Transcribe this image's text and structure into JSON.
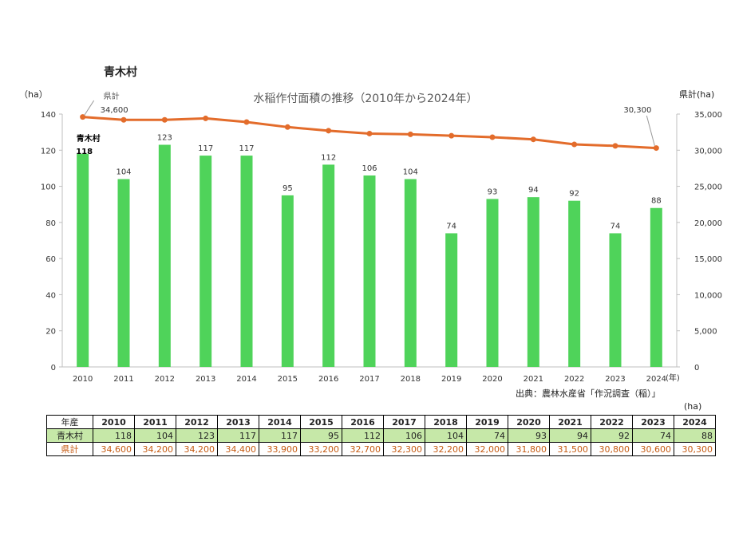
{
  "header": {
    "village": "青木村",
    "left_axis_unit": "（ha）",
    "right_axis_unit": "県計(ha)",
    "source": "出典：農林水産省「作況調査（稲）」",
    "table_unit": "(ha)"
  },
  "chart_data": {
    "type": "bar+line",
    "title": "水稲作付面積の推移（2010年から2024年）",
    "categories": [
      "2010",
      "2011",
      "2012",
      "2013",
      "2014",
      "2015",
      "2016",
      "2017",
      "2018",
      "2019",
      "2020",
      "2021",
      "2022",
      "2023",
      "2024"
    ],
    "x_unit_label": "(年)",
    "bar_series": {
      "name": "青木村",
      "values": [
        118,
        104,
        123,
        117,
        117,
        95,
        112,
        106,
        104,
        74,
        93,
        94,
        92,
        74,
        88
      ],
      "color": "#4fd35a",
      "ylim": [
        0,
        140
      ],
      "yticks": [
        0,
        20,
        40,
        60,
        80,
        100,
        120,
        140
      ]
    },
    "line_series": {
      "name": "県計",
      "values": [
        34600,
        34200,
        34200,
        34400,
        33900,
        33200,
        32700,
        32300,
        32200,
        32000,
        31800,
        31500,
        30800,
        30600,
        30300
      ],
      "color": "#e36c2b",
      "ylim": [
        0,
        35000
      ],
      "yticks": [
        0,
        5000,
        10000,
        15000,
        20000,
        25000,
        30000,
        35000
      ],
      "ytick_labels": [
        "0",
        "5,000",
        "10,000",
        "15,000",
        "20,000",
        "25,000",
        "30,000",
        "35,000"
      ],
      "label_first": "34,600",
      "label_last": "30,300",
      "series_label": "県計"
    },
    "bar_series_label": "青木村"
  },
  "table": {
    "header_label": "年産",
    "years": [
      "2010",
      "2011",
      "2012",
      "2013",
      "2014",
      "2015",
      "2016",
      "2017",
      "2018",
      "2019",
      "2020",
      "2021",
      "2022",
      "2023",
      "2024"
    ],
    "rows": [
      {
        "label": "青木村",
        "values": [
          "118",
          "104",
          "123",
          "117",
          "117",
          "95",
          "112",
          "106",
          "104",
          "74",
          "93",
          "94",
          "92",
          "74",
          "88"
        ]
      },
      {
        "label": "県計",
        "values": [
          "34,600",
          "34,200",
          "34,200",
          "34,400",
          "33,900",
          "33,200",
          "32,700",
          "32,300",
          "32,200",
          "32,000",
          "31,800",
          "31,500",
          "30,800",
          "30,600",
          "30,300"
        ]
      }
    ]
  }
}
